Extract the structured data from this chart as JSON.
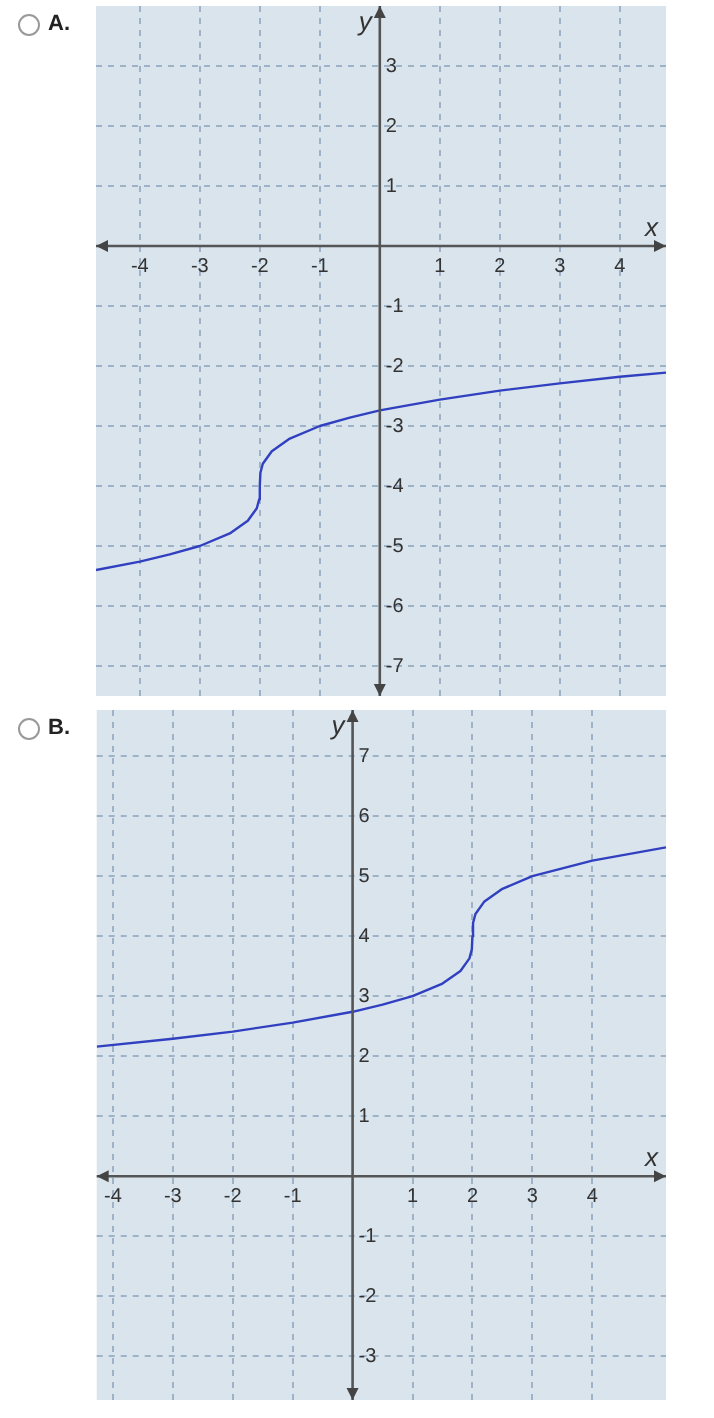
{
  "chart_data": [
    {
      "type": "line",
      "title": "A.",
      "xlabel": "x",
      "ylabel": "y",
      "xlim": [
        -4.73,
        4.77
      ],
      "ylim": [
        -7.5,
        4
      ],
      "xticks": [
        -4,
        -3,
        -2,
        -1,
        1,
        2,
        3,
        4
      ],
      "yticks": [
        -7,
        -6,
        -5,
        -4,
        -3,
        -2,
        -1,
        1,
        2,
        3
      ],
      "grid": true,
      "marker": "none",
      "line_style": "solid",
      "series": [
        {
          "color": "#3040c0",
          "x": [
            -4.73,
            -4,
            -3.5,
            -3,
            -2.5,
            -2.2,
            -2.05,
            -2.01,
            -2,
            -1.99,
            -1.95,
            -1.8,
            -1.5,
            -1,
            -0.5,
            0,
            1,
            2,
            3,
            4,
            4.77
          ],
          "values": [
            -5.4,
            -5.26,
            -5.14,
            -5,
            -4.79,
            -4.58,
            -4.37,
            -4.22,
            -4,
            -3.78,
            -3.63,
            -3.42,
            -3.21,
            -3,
            -2.86,
            -2.74,
            -2.56,
            -2.41,
            -2.29,
            -2.18,
            -2.11
          ]
        }
      ]
    },
    {
      "type": "line",
      "title": "B.",
      "xlabel": "x",
      "ylabel": "y",
      "xlim": [
        -4.27,
        5.23
      ],
      "ylim": [
        -3.73,
        7.77
      ],
      "xticks": [
        -4,
        -3,
        -2,
        -1,
        1,
        2,
        3,
        4
      ],
      "yticks": [
        -3,
        -2,
        -1,
        1,
        2,
        3,
        4,
        5,
        6,
        7
      ],
      "grid": true,
      "marker": "none",
      "line_style": "solid",
      "series": [
        {
          "color": "#3040c0",
          "x": [
            -4.27,
            -3,
            -2,
            -1,
            0,
            0.5,
            1,
            1.5,
            1.8,
            1.95,
            1.99,
            2,
            2.01,
            2.05,
            2.2,
            2.5,
            3,
            4,
            5.23
          ],
          "values": [
            2.16,
            2.29,
            2.41,
            2.56,
            2.74,
            2.86,
            3,
            3.21,
            3.42,
            3.63,
            3.78,
            4,
            4.22,
            4.37,
            4.58,
            4.79,
            5,
            5.26,
            5.48
          ]
        }
      ]
    }
  ]
}
